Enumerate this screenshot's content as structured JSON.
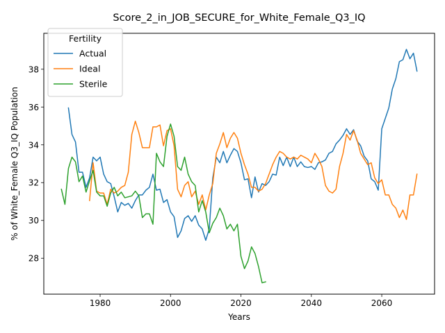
{
  "chart_data": {
    "type": "line",
    "title": "Score_2_in_JOB_SECURE_for_White_Female_Q3_IQ",
    "xlabel": "Years",
    "ylabel": "% of White_Female Q3_IQ Population",
    "xlim": [
      1964,
      2075
    ],
    "ylim": [
      26.1,
      39.9
    ],
    "xticks": [
      1980,
      2000,
      2020,
      2040,
      2060
    ],
    "yticks": [
      28,
      30,
      32,
      34,
      36,
      38
    ],
    "legend": {
      "title": "Fertility",
      "placement": "top-left"
    },
    "grid": false,
    "series": [
      {
        "name": "Actual",
        "color": "#1f77b4",
        "x": [
          1971,
          1972,
          1973,
          1974,
          1975,
          1976,
          1977,
          1978,
          1979,
          1980,
          1981,
          1982,
          1983,
          1984,
          1985,
          1986,
          1987,
          1988,
          1989,
          1990,
          1991,
          1992,
          1993,
          1994,
          1995,
          1996,
          1997,
          1998,
          1999,
          2000,
          2001,
          2002,
          2003,
          2004,
          2005,
          2006,
          2007,
          2008,
          2009,
          2010,
          2011,
          2012,
          2013,
          2014,
          2015,
          2016,
          2017,
          2018,
          2019,
          2020,
          2021,
          2022,
          2023,
          2024,
          2025,
          2026,
          2027,
          2028,
          2029,
          2030,
          2031,
          2032,
          2033,
          2034,
          2035,
          2036,
          2037,
          2038,
          2039,
          2040,
          2041,
          2042,
          2043,
          2044,
          2045,
          2046,
          2047,
          2048,
          2049,
          2050,
          2051,
          2052,
          2053,
          2054,
          2055,
          2056,
          2057,
          2058,
          2059,
          2060,
          2061,
          2062,
          2063,
          2064,
          2065,
          2066,
          2067,
          2068,
          2069,
          2070
        ],
        "y": [
          35.95,
          34.55,
          34.15,
          32.55,
          32.55,
          31.75,
          32.25,
          33.35,
          33.15,
          33.35,
          32.45,
          32.05,
          31.95,
          31.25,
          30.45,
          30.95,
          30.8,
          30.9,
          30.65,
          31.05,
          31.35,
          31.35,
          31.6,
          31.75,
          32.45,
          31.6,
          31.65,
          30.95,
          31.1,
          30.45,
          30.2,
          29.1,
          29.45,
          30.1,
          30.25,
          29.95,
          30.25,
          29.75,
          29.55,
          28.95,
          29.55,
          32.25,
          33.35,
          33.05,
          33.65,
          33.05,
          33.45,
          33.8,
          33.65,
          33.05,
          32.15,
          32.2,
          31.2,
          32.3,
          31.5,
          31.95,
          31.85,
          32.05,
          32.45,
          32.4,
          33.35,
          32.9,
          33.35,
          32.85,
          33.35,
          32.85,
          33.1,
          32.85,
          32.8,
          32.85,
          32.7,
          33.05,
          33.1,
          33.2,
          33.55,
          33.65,
          34.05,
          34.25,
          34.5,
          34.85,
          34.55,
          34.8,
          34.2,
          33.95,
          33.4,
          33.15,
          32.2,
          32.05,
          31.6,
          34.85,
          35.4,
          35.95,
          36.95,
          37.5,
          38.4,
          38.5,
          39.05,
          38.55,
          38.85,
          37.9
        ]
      },
      {
        "name": "Ideal",
        "color": "#ff7f0e",
        "x": [
          1977,
          1978,
          1979,
          1980,
          1981,
          1982,
          1983,
          1984,
          1985,
          1986,
          1987,
          1988,
          1989,
          1990,
          1991,
          1992,
          1993,
          1994,
          1995,
          1996,
          1997,
          1998,
          1999,
          2000,
          2001,
          2002,
          2003,
          2004,
          2005,
          2006,
          2007,
          2008,
          2009,
          2010,
          2011,
          2012,
          2013,
          2014,
          2015,
          2016,
          2017,
          2018,
          2019,
          2020,
          2021,
          2022,
          2023,
          2024,
          2025,
          2026,
          2027,
          2028,
          2029,
          2030,
          2031,
          2032,
          2033,
          2034,
          2035,
          2036,
          2037,
          2038,
          2039,
          2040,
          2041,
          2042,
          2043,
          2044,
          2045,
          2046,
          2047,
          2048,
          2049,
          2050,
          2051,
          2052,
          2053,
          2054,
          2055,
          2056,
          2057,
          2058,
          2059,
          2060,
          2061,
          2062,
          2063,
          2064,
          2065,
          2066,
          2067,
          2068,
          2069,
          2070
        ],
        "y": [
          31.05,
          33.05,
          31.55,
          31.45,
          31.45,
          30.85,
          31.65,
          31.45,
          31.55,
          31.75,
          31.85,
          32.55,
          34.55,
          35.25,
          34.65,
          33.85,
          33.85,
          33.85,
          34.95,
          34.95,
          35.05,
          33.95,
          34.75,
          34.85,
          33.95,
          31.65,
          31.25,
          31.85,
          32.05,
          31.25,
          31.55,
          30.85,
          31.35,
          30.55,
          31.35,
          31.95,
          33.55,
          34.05,
          34.65,
          33.85,
          34.35,
          34.65,
          34.35,
          33.55,
          32.95,
          32.45,
          31.75,
          31.75,
          31.55,
          31.65,
          31.95,
          32.45,
          32.95,
          33.35,
          33.65,
          33.55,
          33.35,
          33.25,
          33.35,
          33.25,
          33.45,
          33.35,
          33.25,
          33.05,
          33.55,
          33.25,
          32.85,
          31.85,
          31.55,
          31.45,
          31.65,
          32.85,
          33.55,
          34.55,
          34.25,
          34.75,
          34.25,
          33.55,
          33.25,
          32.95,
          33.05,
          32.25,
          31.95,
          32.15,
          31.35,
          31.35,
          30.85,
          30.65,
          30.15,
          30.55,
          30.05,
          31.35,
          31.35,
          32.45
        ]
      },
      {
        "name": "Sterile",
        "color": "#2ca02c",
        "x": [
          1969,
          1970,
          1971,
          1972,
          1973,
          1974,
          1975,
          1976,
          1977,
          1978,
          1979,
          1980,
          1981,
          1982,
          1983,
          1984,
          1985,
          1986,
          1987,
          1988,
          1989,
          1990,
          1991,
          1992,
          1993,
          1994,
          1995,
          1996,
          1997,
          1998,
          1999,
          2000,
          2001,
          2002,
          2003,
          2004,
          2005,
          2006,
          2007,
          2008,
          2009,
          2010,
          2011,
          2012,
          2013,
          2014,
          2015,
          2016,
          2017,
          2018,
          2019,
          2020,
          2021,
          2022,
          2023,
          2024,
          2025,
          2026,
          2027
        ],
        "y": [
          31.65,
          30.85,
          32.75,
          33.35,
          33.1,
          32.05,
          32.35,
          31.5,
          32.1,
          32.65,
          31.5,
          31.3,
          31.3,
          30.75,
          31.45,
          31.75,
          31.3,
          31.5,
          31.2,
          31.25,
          31.3,
          31.55,
          31.3,
          30.15,
          30.35,
          30.35,
          29.8,
          33.55,
          33.1,
          32.85,
          34.45,
          35.1,
          34.45,
          32.85,
          32.65,
          33.35,
          32.45,
          32.05,
          31.85,
          30.45,
          31.05,
          30.45,
          29.35,
          29.85,
          30.15,
          30.65,
          30.25,
          29.55,
          29.8,
          29.45,
          29.8,
          28.1,
          27.45,
          27.85,
          28.6,
          28.25,
          27.55,
          26.7,
          26.75
        ]
      }
    ]
  }
}
